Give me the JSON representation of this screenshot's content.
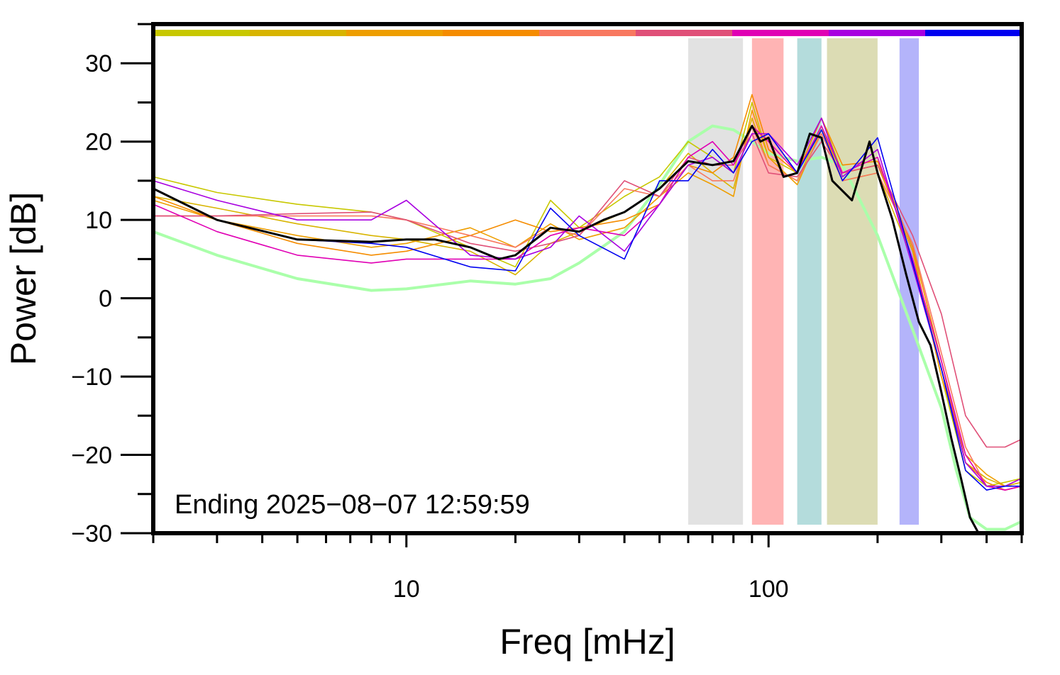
{
  "chart_data": {
    "type": "line",
    "title": "",
    "xlabel": "Freq [mHz]",
    "ylabel": "Power [dB]",
    "x_scale": "log",
    "xlim": [
      2,
      500
    ],
    "ylim": [
      -30,
      35
    ],
    "grid": false,
    "legend": "none",
    "x_ticks": [
      {
        "value": 10,
        "label": "10"
      },
      {
        "value": 100,
        "label": "100"
      }
    ],
    "y_ticks": [
      {
        "value": 30,
        "label": "30"
      },
      {
        "value": 20,
        "label": "20"
      },
      {
        "value": 10,
        "label": "10"
      },
      {
        "value": 0,
        "label": "0"
      },
      {
        "value": -10,
        "label": "−10"
      },
      {
        "value": -20,
        "label": "−20"
      },
      {
        "value": -30,
        "label": "−30"
      }
    ],
    "annotation": "Ending 2025−08−07 12:59:59",
    "color_bar": [
      "#c8c800",
      "#d8b400",
      "#ee9e00",
      "#f58c00",
      "#f87860",
      "#e05078",
      "#e000b4",
      "#a800e0",
      "#0000f0"
    ],
    "bands": [
      {
        "from": 60,
        "to": 85,
        "color": "#e2e2e2"
      },
      {
        "from": 90,
        "to": 110,
        "color": "#ffb4b4"
      },
      {
        "from": 120,
        "to": 140,
        "color": "#b4dcdc"
      },
      {
        "from": 145,
        "to": 200,
        "color": "#dcdcb4"
      },
      {
        "from": 230,
        "to": 260,
        "color": "#b4b4fa"
      }
    ],
    "reference_series": {
      "color": "#aaffaa",
      "x": [
        2,
        3,
        5,
        8,
        10,
        15,
        20,
        25,
        30,
        40,
        50,
        60,
        70,
        80,
        90,
        100,
        120,
        140,
        160,
        200,
        250,
        300,
        330,
        360,
        400,
        450,
        500
      ],
      "y": [
        8.5,
        5.5,
        2.5,
        1.0,
        1.2,
        2.2,
        1.8,
        2.5,
        4.5,
        8.5,
        14.5,
        20.0,
        22.0,
        21.5,
        20.0,
        18.5,
        17.5,
        18.0,
        17.0,
        8.0,
        -4.0,
        -14.0,
        -22.0,
        -28.0,
        -29.5,
        -29.5,
        -28.5
      ]
    },
    "mean_series": {
      "color": "#000000",
      "x": [
        2,
        3,
        5,
        8,
        10,
        12,
        15,
        18,
        20,
        25,
        30,
        35,
        40,
        50,
        60,
        70,
        80,
        90,
        95,
        100,
        110,
        120,
        130,
        140,
        150,
        170,
        190,
        200,
        220,
        240,
        260,
        280,
        300,
        320,
        340,
        360,
        380
      ],
      "y": [
        14.0,
        10.0,
        7.5,
        7.2,
        7.5,
        7.5,
        6.5,
        5.0,
        5.5,
        9.0,
        8.5,
        10.0,
        11.0,
        14.0,
        17.5,
        17.0,
        17.5,
        22.0,
        20.0,
        20.5,
        15.5,
        16.0,
        21.0,
        20.5,
        15.0,
        12.5,
        20.0,
        16.0,
        10.0,
        3.0,
        -3.0,
        -6.0,
        -12.0,
        -18.0,
        -23.0,
        -28.0,
        -30.0
      ]
    },
    "series": [
      {
        "color": "#c8c800",
        "x": [
          2,
          3,
          5,
          8,
          10,
          15,
          20,
          25,
          30,
          40,
          50,
          60,
          70,
          80,
          90,
          100,
          120,
          140,
          160,
          200,
          250,
          300,
          350,
          400,
          450,
          500
        ],
        "y": [
          15.5,
          13.5,
          12.0,
          11.0,
          10.0,
          6.5,
          4.0,
          12.5,
          9.0,
          13.0,
          15.5,
          20.0,
          18.0,
          16.0,
          25.0,
          18.0,
          16.0,
          23.0,
          16.0,
          17.0,
          6.0,
          -10.0,
          -22.0,
          -24.0,
          -23.5,
          -23.0
        ]
      },
      {
        "color": "#d8b400",
        "x": [
          2,
          3,
          5,
          8,
          10,
          15,
          20,
          25,
          30,
          40,
          50,
          60,
          70,
          80,
          90,
          100,
          120,
          140,
          160,
          200,
          250,
          300,
          350,
          400,
          450,
          500
        ],
        "y": [
          13.0,
          11.5,
          9.5,
          8.0,
          7.5,
          6.0,
          3.0,
          7.0,
          8.5,
          11.0,
          14.0,
          18.5,
          16.0,
          14.0,
          23.0,
          17.0,
          15.0,
          22.0,
          15.0,
          16.0,
          5.0,
          -9.0,
          -21.0,
          -23.0,
          -24.0,
          -23.5
        ]
      },
      {
        "color": "#ee9e00",
        "x": [
          2,
          3,
          5,
          8,
          10,
          15,
          20,
          25,
          30,
          40,
          50,
          60,
          70,
          80,
          90,
          100,
          120,
          140,
          160,
          200,
          250,
          300,
          350,
          400,
          450,
          500
        ],
        "y": [
          12.5,
          10.0,
          8.0,
          6.5,
          7.0,
          9.0,
          6.5,
          9.5,
          7.5,
          9.0,
          13.0,
          16.0,
          14.5,
          13.0,
          24.0,
          18.0,
          14.5,
          21.5,
          16.0,
          17.0,
          6.0,
          -10.0,
          -20.0,
          -22.5,
          -24.0,
          -23.0
        ]
      },
      {
        "color": "#f58c00",
        "x": [
          2,
          3,
          5,
          8,
          10,
          15,
          20,
          25,
          30,
          40,
          50,
          60,
          70,
          80,
          90,
          100,
          120,
          140,
          160,
          200,
          250,
          300,
          350,
          400,
          450,
          500
        ],
        "y": [
          13.0,
          10.0,
          7.0,
          5.5,
          6.0,
          8.0,
          10.0,
          8.5,
          9.0,
          10.0,
          12.0,
          17.0,
          16.0,
          18.0,
          26.0,
          19.0,
          16.0,
          23.0,
          17.0,
          17.5,
          6.5,
          -8.0,
          -21.0,
          -23.5,
          -24.5,
          -24.0
        ]
      },
      {
        "color": "#f87860",
        "x": [
          2,
          3,
          5,
          8,
          10,
          15,
          20,
          25,
          30,
          40,
          50,
          60,
          70,
          80,
          90,
          100,
          120,
          140,
          160,
          200,
          250,
          300,
          350,
          400,
          450,
          500
        ],
        "y": [
          10.5,
          10.5,
          10.5,
          10.5,
          10.0,
          8.0,
          6.5,
          9.0,
          8.0,
          14.0,
          13.0,
          17.0,
          15.0,
          15.0,
          22.0,
          17.0,
          15.0,
          21.0,
          15.0,
          16.0,
          7.0,
          -7.0,
          -19.0,
          -24.0,
          -24.5,
          -24.0
        ]
      },
      {
        "color": "#e05078",
        "x": [
          2,
          3,
          5,
          8,
          10,
          15,
          20,
          25,
          30,
          40,
          50,
          60,
          70,
          80,
          90,
          100,
          120,
          140,
          160,
          200,
          250,
          300,
          350,
          400,
          450,
          500
        ],
        "y": [
          10.5,
          10.5,
          10.8,
          11.0,
          10.0,
          7.0,
          6.0,
          7.0,
          8.0,
          15.0,
          13.0,
          18.0,
          17.0,
          17.0,
          21.0,
          16.0,
          15.5,
          20.0,
          16.0,
          17.0,
          8.0,
          -2.0,
          -15.0,
          -19.0,
          -19.0,
          -18.0
        ]
      },
      {
        "color": "#e000b4",
        "x": [
          2,
          3,
          5,
          8,
          10,
          15,
          20,
          25,
          30,
          40,
          50,
          60,
          70,
          80,
          90,
          100,
          120,
          140,
          160,
          200,
          250,
          300,
          350,
          400,
          450,
          500
        ],
        "y": [
          12.0,
          8.5,
          5.5,
          4.5,
          5.0,
          5.0,
          5.0,
          8.0,
          9.0,
          8.0,
          12.0,
          18.0,
          20.0,
          17.0,
          22.0,
          20.0,
          16.0,
          22.0,
          16.0,
          18.0,
          5.0,
          -8.0,
          -20.0,
          -24.0,
          -24.5,
          -24.0
        ]
      },
      {
        "color": "#a800e0",
        "x": [
          2,
          3,
          5,
          8,
          10,
          15,
          20,
          25,
          30,
          40,
          50,
          60,
          70,
          80,
          90,
          100,
          120,
          140,
          160,
          200,
          250,
          300,
          350,
          400,
          450,
          500
        ],
        "y": [
          15.0,
          12.5,
          10.0,
          10.0,
          12.5,
          5.5,
          5.0,
          6.5,
          10.5,
          6.0,
          12.0,
          17.0,
          18.0,
          16.0,
          21.0,
          21.0,
          17.0,
          23.0,
          15.5,
          19.0,
          4.0,
          -9.0,
          -21.0,
          -24.0,
          -24.0,
          -23.0
        ]
      },
      {
        "color": "#0000f0",
        "x": [
          2,
          3,
          5,
          8,
          10,
          15,
          20,
          25,
          30,
          40,
          50,
          60,
          70,
          80,
          90,
          100,
          120,
          140,
          160,
          200,
          250,
          300,
          350,
          400,
          450,
          500
        ],
        "y": [
          14.0,
          10.0,
          7.5,
          7.0,
          6.5,
          4.0,
          3.5,
          11.5,
          8.0,
          5.0,
          15.0,
          15.0,
          19.0,
          16.0,
          20.0,
          21.0,
          16.0,
          21.5,
          15.0,
          20.5,
          4.5,
          -9.0,
          -22.0,
          -24.5,
          -24.0,
          -24.0
        ]
      }
    ]
  }
}
